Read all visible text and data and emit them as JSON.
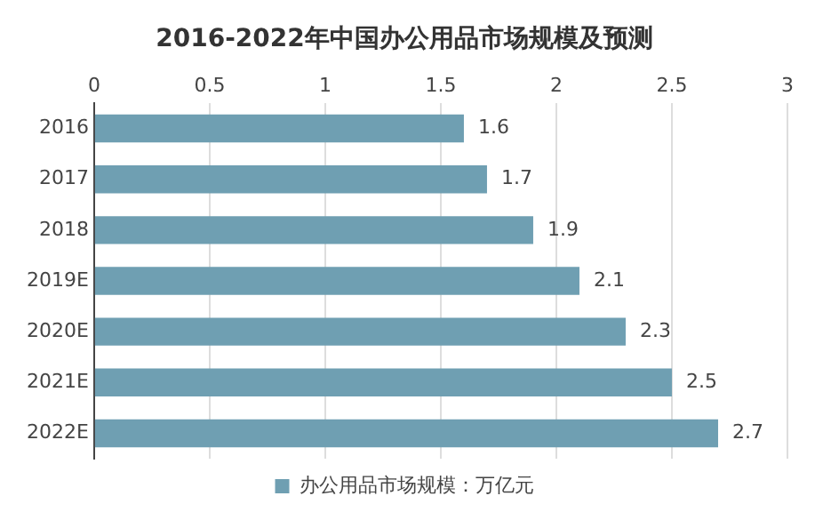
{
  "chart_data": {
    "type": "bar",
    "orientation": "horizontal",
    "title": "2016-2022年中国办公用品市场规模及预测",
    "categories": [
      "2016",
      "2017",
      "2018",
      "2019E",
      "2020E",
      "2021E",
      "2022E"
    ],
    "series": [
      {
        "name": "办公用品市场规模：万亿元",
        "color": "#6f9fb2",
        "values": [
          1.6,
          1.7,
          1.9,
          2.1,
          2.3,
          2.5,
          2.7
        ]
      }
    ],
    "xlim": [
      0,
      3
    ],
    "xticks": [
      0,
      0.5,
      1,
      1.5,
      2,
      2.5,
      3
    ],
    "grid": "x",
    "legend": "bottom",
    "data_labels": true
  }
}
